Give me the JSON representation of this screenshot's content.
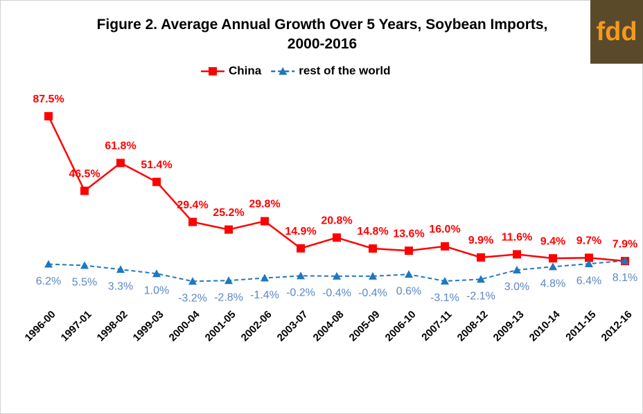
{
  "chart_data": {
    "type": "line",
    "title": "Figure 2. Average Annual Growth Over 5 Years, Soybean Imports, 2000-2016",
    "logo": "fdd",
    "categories": [
      "1996-00",
      "1997-01",
      "1998-02",
      "1999-03",
      "2000-04",
      "2001-05",
      "2002-06",
      "2003-07",
      "2004-08",
      "2005-09",
      "2006-10",
      "2007-11",
      "2008-12",
      "2009-13",
      "2010-14",
      "2011-15",
      "2012-16"
    ],
    "series": [
      {
        "name": "China",
        "color": "#ff0000",
        "marker": "square",
        "dashed": false,
        "values": [
          87.5,
          46.5,
          61.8,
          51.4,
          29.4,
          25.2,
          29.8,
          14.9,
          20.8,
          14.8,
          13.6,
          16.0,
          9.9,
          11.6,
          9.4,
          9.7,
          7.9
        ],
        "value_labels": [
          "87.5%",
          "46.5%",
          "61.8%",
          "51.4%",
          "29.4%",
          "25.2%",
          "29.8%",
          "14.9%",
          "20.8%",
          "14.8%",
          "13.6%",
          "16.0%",
          "9.9%",
          "11.6%",
          "9.4%",
          "9.7%",
          "7.9%"
        ]
      },
      {
        "name": "rest of the world",
        "color": "#1f77c0",
        "label_color": "#5b87c5",
        "marker": "triangle",
        "dashed": true,
        "values": [
          6.2,
          5.5,
          3.3,
          1.0,
          -3.2,
          -2.8,
          -1.4,
          -0.2,
          -0.4,
          -0.4,
          0.6,
          -3.1,
          -2.1,
          3.0,
          4.8,
          6.4,
          8.1
        ],
        "value_labels": [
          "6.2%",
          "5.5%",
          "3.3%",
          "1.0%",
          "-3.2%",
          "-2.8%",
          "-1.4%",
          "-0.2%",
          "-0.4%",
          "-0.4%",
          "0.6%",
          "-3.1%",
          "-2.1%",
          "3.0%",
          "4.8%",
          "6.4%",
          "8.1%"
        ]
      }
    ],
    "ylim": [
      -40,
      100
    ],
    "legend": "top"
  }
}
